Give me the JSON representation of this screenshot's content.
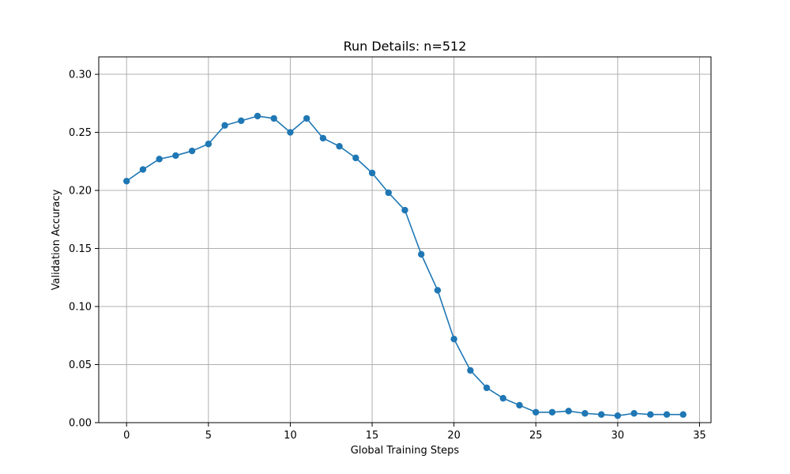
{
  "chart_data": {
    "type": "line",
    "title": "Run Details: n=512",
    "xlabel": "Global Training Steps",
    "ylabel": "Validation Accuracy",
    "xlim": [
      -1.7,
      35.7
    ],
    "ylim": [
      0.0,
      0.315
    ],
    "xticks": [
      0,
      5,
      10,
      15,
      20,
      25,
      30,
      35
    ],
    "yticks": [
      0.0,
      0.05,
      0.1,
      0.15,
      0.2,
      0.25,
      0.3
    ],
    "xtick_labels": [
      "0",
      "5",
      "10",
      "15",
      "20",
      "25",
      "30",
      "35"
    ],
    "ytick_labels": [
      "0.00",
      "0.05",
      "0.10",
      "0.15",
      "0.20",
      "0.25",
      "0.30"
    ],
    "grid": true,
    "series": [
      {
        "color": "#1f77b4",
        "marker": "circle",
        "x": [
          0,
          1,
          2,
          3,
          4,
          5,
          6,
          7,
          8,
          9,
          10,
          11,
          12,
          13,
          14,
          15,
          16,
          17,
          18,
          19,
          20,
          21,
          22,
          23,
          24,
          25,
          26,
          27,
          28,
          29,
          30,
          31,
          32,
          33,
          34
        ],
        "y": [
          0.208,
          0.218,
          0.227,
          0.23,
          0.234,
          0.24,
          0.256,
          0.26,
          0.264,
          0.262,
          0.25,
          0.262,
          0.245,
          0.238,
          0.228,
          0.215,
          0.198,
          0.183,
          0.145,
          0.114,
          0.072,
          0.045,
          0.03,
          0.021,
          0.015,
          0.009,
          0.009,
          0.01,
          0.008,
          0.007,
          0.006,
          0.008,
          0.007,
          0.007,
          0.007
        ]
      }
    ]
  }
}
